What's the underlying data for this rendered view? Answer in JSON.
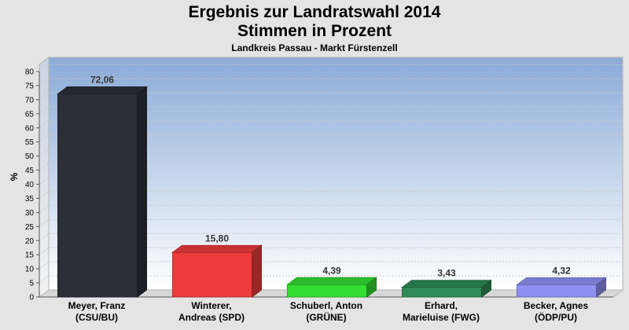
{
  "chart_data": {
    "type": "bar",
    "title": "Ergebnis zur Landratswahl 2014",
    "subtitle_1": "Stimmen in Prozent",
    "subtitle_2": "Landkreis Passau - Markt Fürstenzell",
    "ylabel": "%",
    "ylim": [
      0,
      80
    ],
    "yticks": [
      "0",
      "5",
      "10",
      "15",
      "20",
      "25",
      "30",
      "35",
      "40",
      "45",
      "50",
      "55",
      "60",
      "65",
      "70",
      "75",
      "80"
    ],
    "categories": [
      [
        "Meyer, Franz",
        "(CSU/BU)"
      ],
      [
        "Winterer,",
        "Andreas (SPD)"
      ],
      [
        "Schuberl, Anton",
        "(GRÜNE)"
      ],
      [
        "Erhard,",
        "Marieluise (FWG)"
      ],
      [
        "Becker, Agnes",
        "(ÖDP/PU)"
      ]
    ],
    "values": [
      72.06,
      15.8,
      4.39,
      3.43,
      4.32
    ],
    "value_labels": [
      "72,06",
      "15,80",
      "4,39",
      "3,43",
      "4,32"
    ],
    "colors": [
      "#2b2f38",
      "#ee3b3b",
      "#33dd33",
      "#2e8b57",
      "#8f8ff2"
    ],
    "grid": true
  }
}
